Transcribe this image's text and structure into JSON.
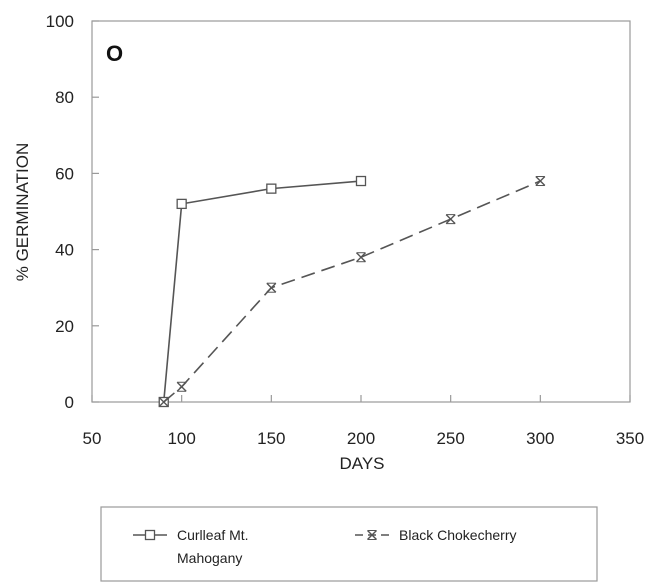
{
  "chart_data": {
    "type": "line",
    "title": "",
    "panel_label": "O",
    "xlabel": "DAYS",
    "ylabel": "% GERMINATION",
    "xlim": [
      50,
      350
    ],
    "ylim": [
      0,
      100
    ],
    "xticks": [
      50,
      100,
      150,
      200,
      250,
      300,
      350
    ],
    "yticks": [
      0,
      20,
      40,
      60,
      80,
      100
    ],
    "grid": false,
    "legend_position": "bottom",
    "series": [
      {
        "name": "Curlleaf Mt. Mahogany",
        "legend_lines": [
          "Curlleaf Mt.",
          "Mahogany"
        ],
        "marker": "square",
        "style": "solid",
        "color": "#555555",
        "points": [
          [
            90,
            0
          ],
          [
            100,
            52
          ],
          [
            150,
            56
          ],
          [
            200,
            58
          ]
        ]
      },
      {
        "name": "Black Chokecherry",
        "legend_lines": [
          "Black Chokecherry"
        ],
        "marker": "x",
        "style": "dashed",
        "color": "#555555",
        "points": [
          [
            90,
            0
          ],
          [
            100,
            4
          ],
          [
            150,
            30
          ],
          [
            200,
            38
          ],
          [
            250,
            48
          ],
          [
            300,
            58
          ]
        ]
      }
    ]
  }
}
